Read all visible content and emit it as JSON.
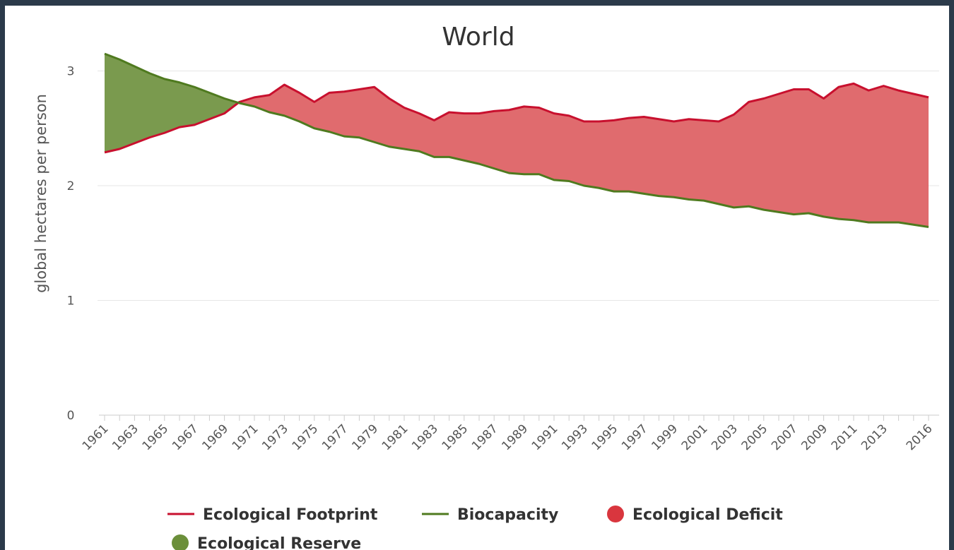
{
  "chart_data": {
    "type": "area",
    "title": "World",
    "xlabel": "",
    "ylabel": "global hectares per person",
    "ylim": [
      0,
      3.2
    ],
    "yticks": [
      0,
      1,
      2,
      3
    ],
    "grid": true,
    "legend_position": "bottom",
    "x": [
      1961,
      1962,
      1963,
      1964,
      1965,
      1966,
      1967,
      1968,
      1969,
      1970,
      1971,
      1972,
      1973,
      1974,
      1975,
      1976,
      1977,
      1978,
      1979,
      1980,
      1981,
      1982,
      1983,
      1984,
      1985,
      1986,
      1987,
      1988,
      1989,
      1990,
      1991,
      1992,
      1993,
      1994,
      1995,
      1996,
      1997,
      1998,
      1999,
      2000,
      2001,
      2002,
      2003,
      2004,
      2005,
      2006,
      2007,
      2008,
      2009,
      2010,
      2011,
      2012,
      2013,
      2014,
      2015,
      2016
    ],
    "x_tick_labels": [
      "1961",
      "1963",
      "1965",
      "1967",
      "1969",
      "1971",
      "1973",
      "1975",
      "1977",
      "1979",
      "1981",
      "1983",
      "1985",
      "1987",
      "1989",
      "1991",
      "1993",
      "1995",
      "1997",
      "1999",
      "2001",
      "2003",
      "2005",
      "2007",
      "2009",
      "2011",
      "2013",
      "2016"
    ],
    "series": [
      {
        "name": "Ecological Footprint",
        "color": "#c8102e",
        "values": [
          2.29,
          2.32,
          2.37,
          2.42,
          2.46,
          2.51,
          2.53,
          2.58,
          2.63,
          2.73,
          2.77,
          2.79,
          2.88,
          2.81,
          2.73,
          2.81,
          2.82,
          2.84,
          2.86,
          2.76,
          2.68,
          2.63,
          2.57,
          2.64,
          2.63,
          2.63,
          2.65,
          2.66,
          2.69,
          2.68,
          2.63,
          2.61,
          2.56,
          2.56,
          2.57,
          2.59,
          2.6,
          2.58,
          2.56,
          2.58,
          2.57,
          2.56,
          2.62,
          2.73,
          2.76,
          2.8,
          2.84,
          2.84,
          2.76,
          2.86,
          2.89,
          2.83,
          2.87,
          2.83,
          2.8,
          2.77
        ]
      },
      {
        "name": "Biocapacity",
        "color": "#4f7a1f",
        "values": [
          3.15,
          3.1,
          3.04,
          2.98,
          2.93,
          2.9,
          2.86,
          2.81,
          2.76,
          2.72,
          2.69,
          2.64,
          2.61,
          2.56,
          2.5,
          2.47,
          2.43,
          2.42,
          2.38,
          2.34,
          2.32,
          2.3,
          2.25,
          2.25,
          2.22,
          2.19,
          2.15,
          2.11,
          2.1,
          2.1,
          2.05,
          2.04,
          2.0,
          1.98,
          1.95,
          1.95,
          1.93,
          1.91,
          1.9,
          1.88,
          1.87,
          1.84,
          1.81,
          1.82,
          1.79,
          1.77,
          1.75,
          1.76,
          1.73,
          1.71,
          1.7,
          1.68,
          1.68,
          1.68,
          1.66,
          1.64
        ]
      }
    ],
    "fills": [
      {
        "name": "Ecological Deficit",
        "color": "#d9363e"
      },
      {
        "name": "Ecological Reserve",
        "color": "#6b8f3a"
      }
    ]
  }
}
